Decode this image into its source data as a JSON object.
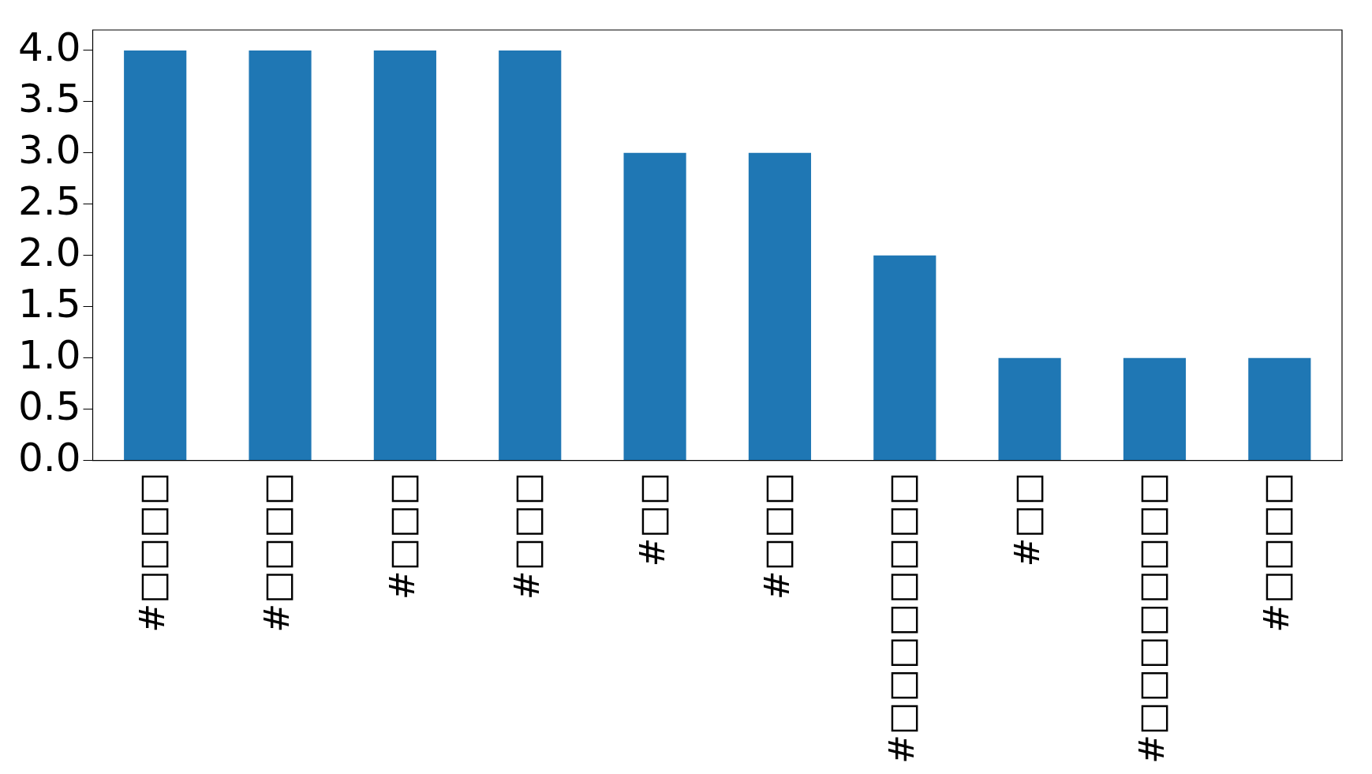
{
  "chart_data": {
    "type": "bar",
    "categories": [
      "#□□□□",
      "#□□□□",
      "#□□□",
      "#□□□",
      "#□□",
      "#□□□",
      "#□□□□□□□□",
      "#□□",
      "#□□□□□□□□",
      "#□□□□"
    ],
    "values": [
      4,
      4,
      4,
      4,
      3,
      3,
      2,
      1,
      1,
      1
    ],
    "color": "#1f77b4",
    "ylim": [
      0,
      4.2
    ],
    "yticks": [
      {
        "value": 0,
        "label": "0.0"
      },
      0.5,
      {
        "value": 1,
        "label": "1.0"
      },
      1.5,
      {
        "value": 2,
        "label": "2.0"
      },
      2.5,
      {
        "value": 3,
        "label": "3.0"
      },
      3.5,
      {
        "value": 4,
        "label": "4.0"
      }
    ],
    "grid": false,
    "legend": false
  }
}
